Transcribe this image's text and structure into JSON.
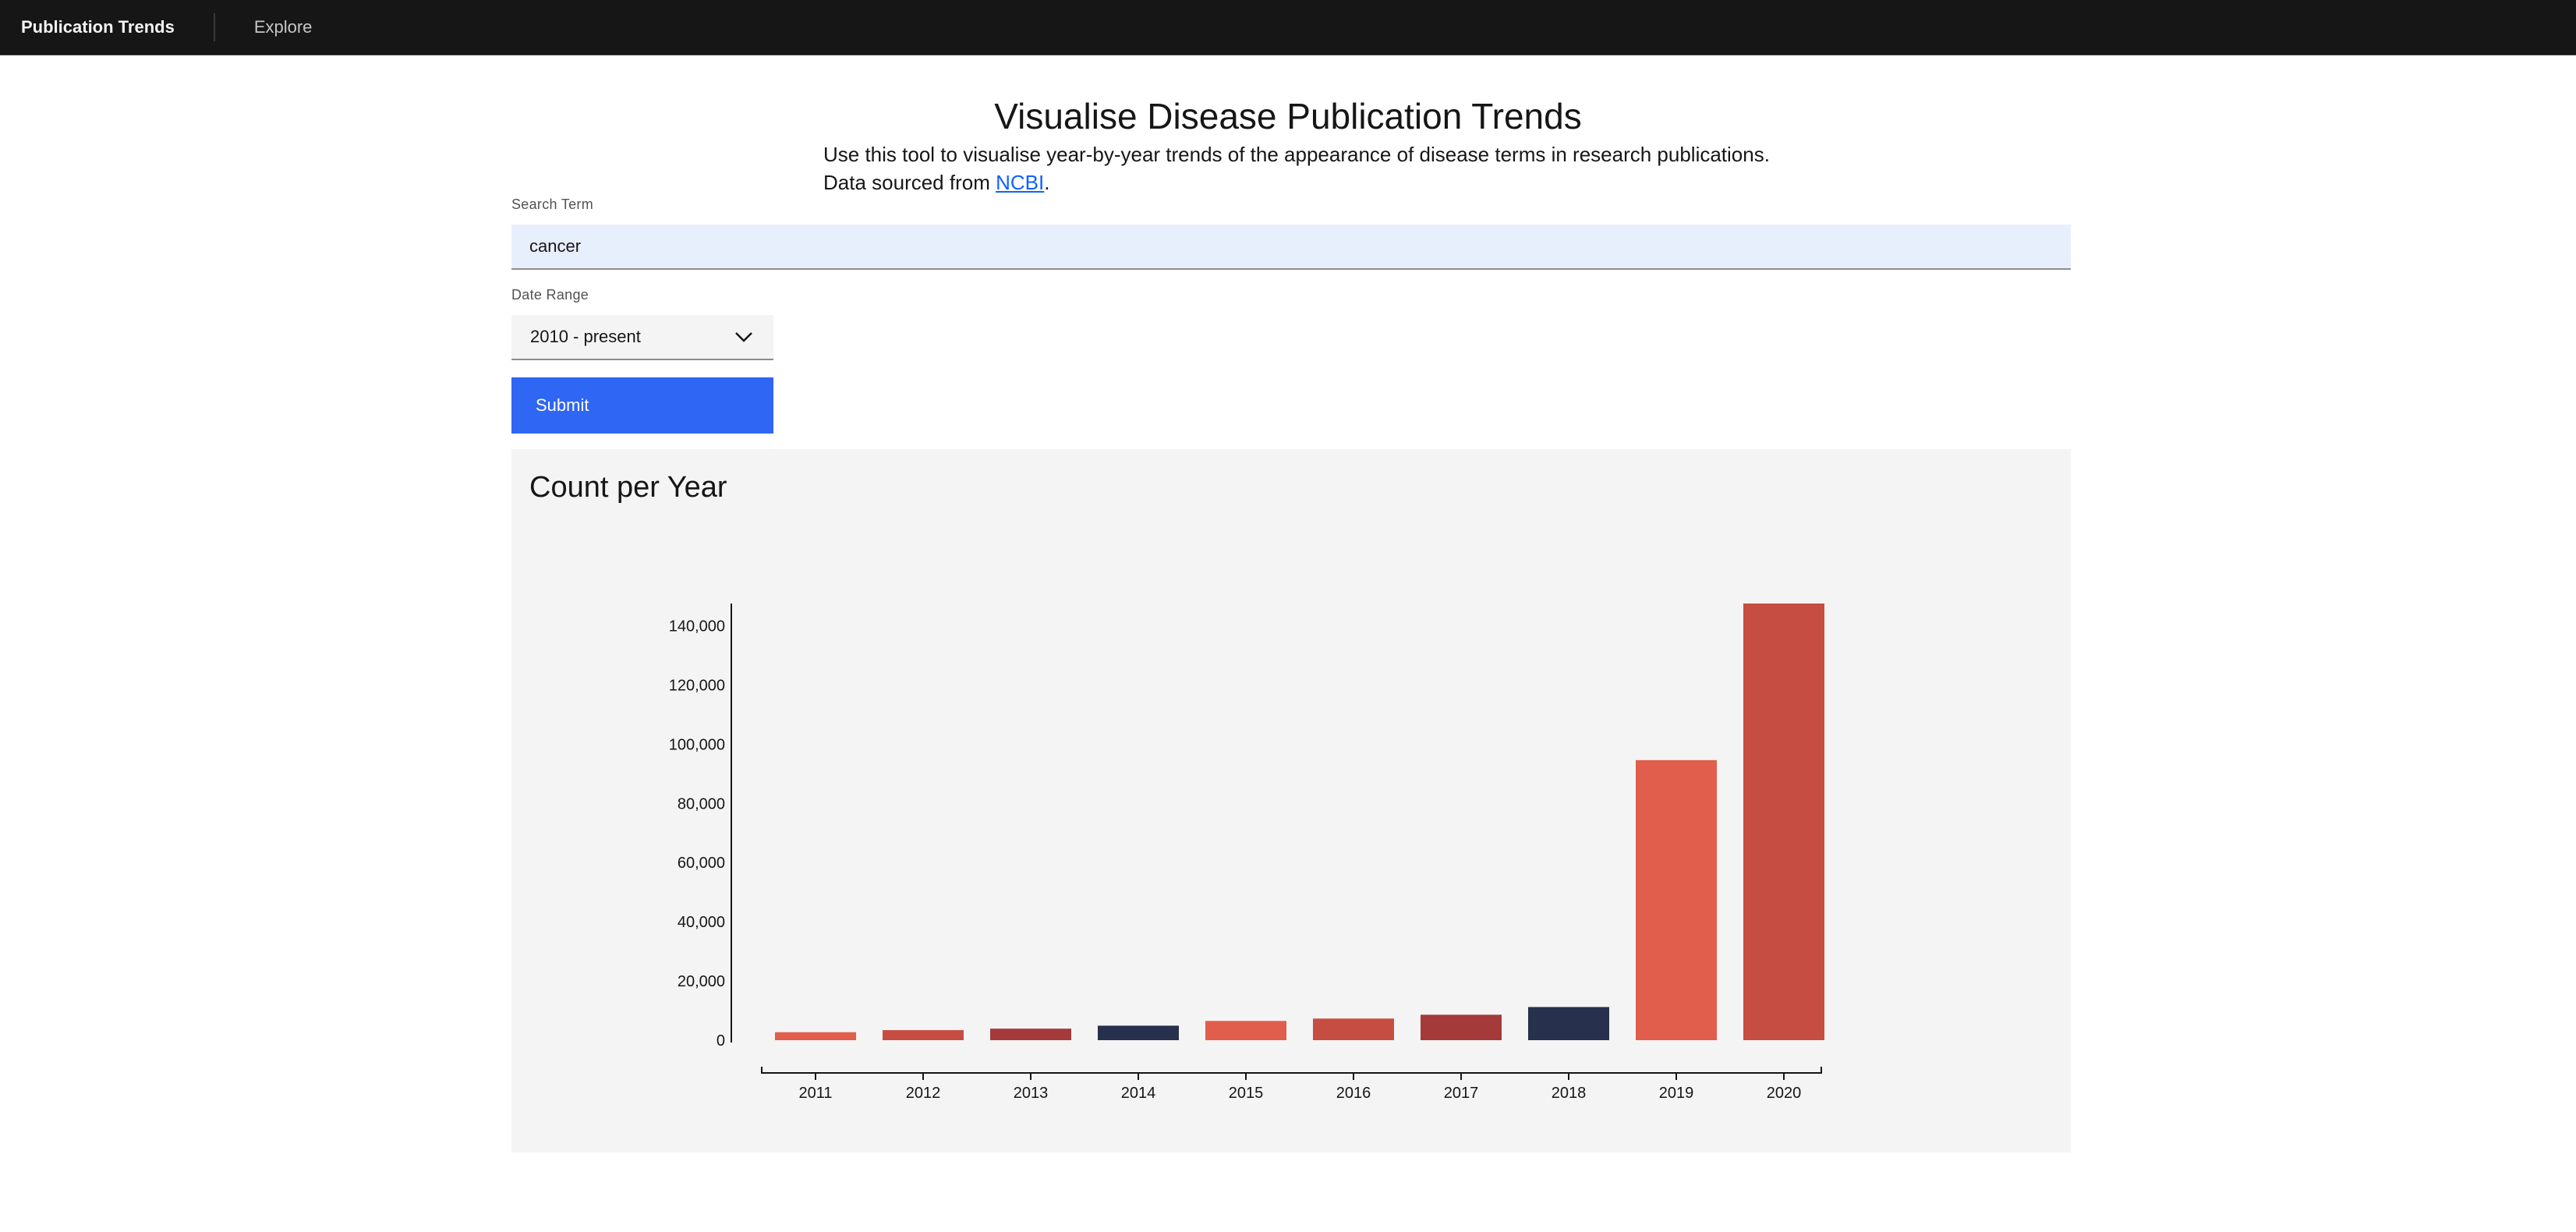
{
  "header": {
    "brand": "Publication Trends",
    "nav": [
      {
        "label": "Explore"
      }
    ]
  },
  "main": {
    "title": "Visualise Disease Publication Trends",
    "description_line1": "Use this tool to visualise year-by-year trends of the appearance of disease terms in research publications.",
    "description_prefix": "Data sourced from ",
    "description_link": "NCBI",
    "description_suffix": "."
  },
  "form": {
    "search_label": "Search Term",
    "search_value": "cancer",
    "date_label": "Date Range",
    "date_value": "2010 - present",
    "submit_label": "Submit"
  },
  "chart_panel": {
    "title": "Count per Year"
  },
  "chart_data": {
    "type": "bar",
    "title": "Count per Year",
    "categories": [
      "2011",
      "2012",
      "2013",
      "2014",
      "2015",
      "2016",
      "2017",
      "2018",
      "2019",
      "2020"
    ],
    "values": [
      2700,
      3400,
      3900,
      4900,
      6500,
      7300,
      8600,
      11200,
      94600,
      147500
    ],
    "colors": [
      "#e05e4b",
      "#c64d42",
      "#a43a3a",
      "#27304c",
      "#e05e4b",
      "#c64d42",
      "#a43a3a",
      "#27304c",
      "#e05e4b",
      "#c64d42"
    ],
    "ylim": [
      0,
      147500
    ],
    "yticks": [
      0,
      20000,
      40000,
      60000,
      80000,
      100000,
      120000,
      140000
    ],
    "ytick_labels": [
      "0",
      "20,000",
      "40,000",
      "60,000",
      "80,000",
      "100,000",
      "120,000",
      "140,000"
    ],
    "xlabel": "",
    "ylabel": "",
    "grid": false,
    "legend": "none"
  }
}
